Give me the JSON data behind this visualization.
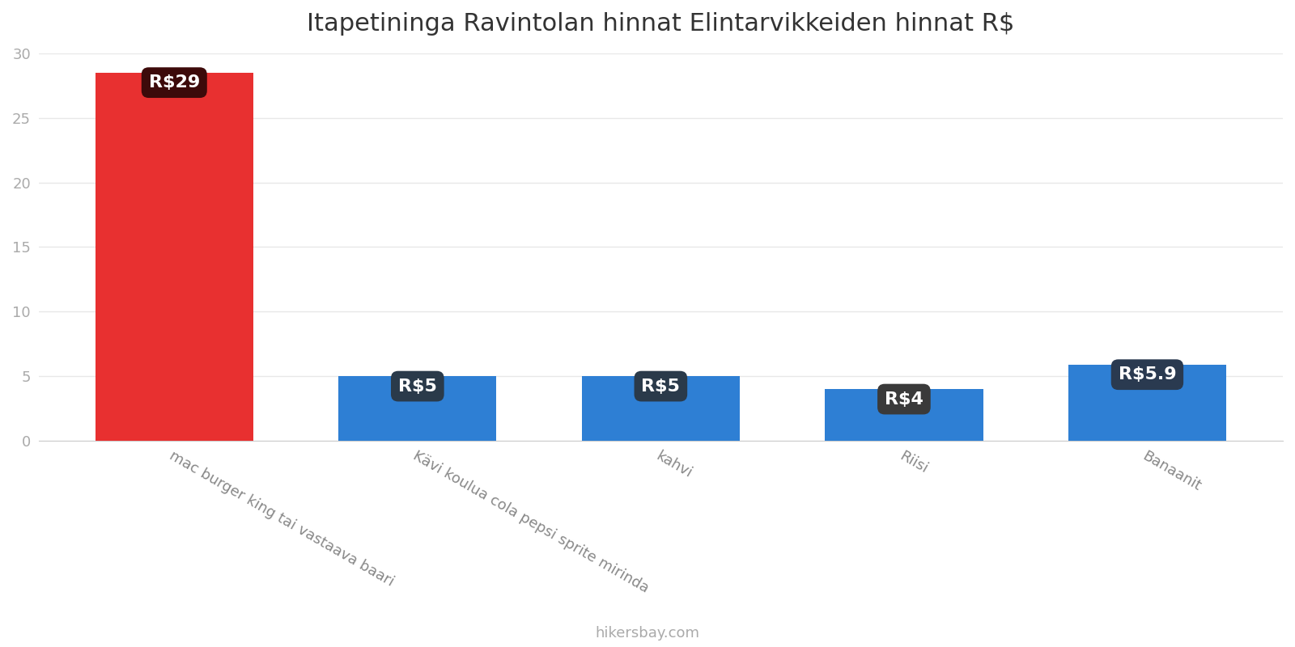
{
  "title": "Itapetininga Ravintolan hinnat Elintarvikkeiden hinnat R$",
  "categories": [
    "mac burger king tai vastaava baari",
    "Kävi koulua cola pepsi sprite mirinda",
    "kahvi",
    "Riisi",
    "Banaanit"
  ],
  "values": [
    28.5,
    5.0,
    5.0,
    4.0,
    5.9
  ],
  "labels": [
    "R$29",
    "R$5",
    "R$5",
    "R$4",
    "R$5.9"
  ],
  "bar_colors": [
    "#e83030",
    "#2e7fd4",
    "#2e7fd4",
    "#2e7fd4",
    "#2e7fd4"
  ],
  "label_bg_colors": [
    "#3d0a0a",
    "#2a3a4a",
    "#2a3a4a",
    "#3a3a3a",
    "#2a3a50"
  ],
  "ylim": [
    0,
    30
  ],
  "yticks": [
    0,
    5,
    10,
    15,
    20,
    25,
    30
  ],
  "footer": "hikersbay.com",
  "title_fontsize": 22,
  "label_fontsize": 16,
  "tick_fontsize": 13,
  "footer_fontsize": 13,
  "background_color": "#ffffff",
  "grid_color": "#e8e8e8"
}
